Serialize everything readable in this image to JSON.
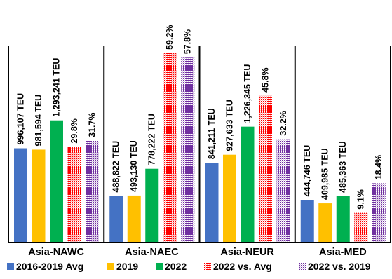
{
  "chart_data": {
    "type": "bar",
    "categories": [
      "Asia-NAWC",
      "Asia-NAEC",
      "Asia-NEUR",
      "Asia-MED"
    ],
    "series": [
      {
        "name": "2016-2019 Avg",
        "color": "#4472c4",
        "pattern": "solid",
        "values": [
          996107,
          488822,
          841211,
          444746
        ],
        "labels": [
          "996,107 TEU",
          "488,822 TEU",
          "841,211 TEU",
          "444,746 TEU"
        ]
      },
      {
        "name": "2019",
        "color": "#ffc000",
        "pattern": "solid",
        "values": [
          981594,
          493130,
          927633,
          409985
        ],
        "labels": [
          "981,594 TEU",
          "493,130 TEU",
          "927,633 TEU",
          "409,985 TEU"
        ]
      },
      {
        "name": "2022",
        "color": "#00b050",
        "pattern": "solid",
        "values": [
          1293241,
          778222,
          1226345,
          485363
        ],
        "labels": [
          "1,293,241 TEU",
          "778,222 TEU",
          "1,226,345 TEU",
          "485,363 TEU"
        ]
      },
      {
        "name": "2022 vs. Avg",
        "color": "#ff0000",
        "pattern": "dotted",
        "values": [
          29.8,
          59.2,
          45.8,
          9.1
        ],
        "labels": [
          "29.8%",
          "59.2%",
          "45.8%",
          "9.1%"
        ]
      },
      {
        "name": "2022 vs. 2019",
        "color": "#7030a0",
        "pattern": "dotted",
        "values": [
          31.7,
          57.8,
          32.2,
          18.4
        ],
        "labels": [
          "31.7%",
          "57.8%",
          "32.2%",
          "18.4%"
        ]
      }
    ],
    "teu_axis_max": 2500000,
    "pct_axis_max": 73.7,
    "legend_position": "bottom",
    "gridlines": false
  }
}
